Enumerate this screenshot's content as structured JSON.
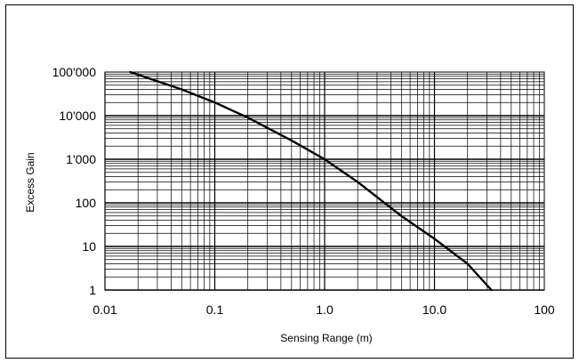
{
  "chart_data": {
    "type": "line",
    "title": "",
    "xlabel": "Sensing Range (m)",
    "ylabel": "Excess Gain",
    "x_scale": "log",
    "y_scale": "log",
    "xlim": [
      0.01,
      100
    ],
    "ylim": [
      1,
      100000
    ],
    "grid": true,
    "x_ticks": [
      {
        "value": 0.01,
        "label": "0.01"
      },
      {
        "value": 0.1,
        "label": "0.1"
      },
      {
        "value": 1,
        "label": "1.0"
      },
      {
        "value": 10,
        "label": "10.0"
      },
      {
        "value": 100,
        "label": "100"
      }
    ],
    "y_ticks": [
      {
        "value": 1,
        "label": "1"
      },
      {
        "value": 10,
        "label": "10"
      },
      {
        "value": 100,
        "label": "100"
      },
      {
        "value": 1000,
        "label": "1'000"
      },
      {
        "value": 10000,
        "label": "10'000"
      },
      {
        "value": 100000,
        "label": "100'000"
      }
    ],
    "series": [
      {
        "color": "#000000",
        "x": [
          0.017,
          0.05,
          0.1,
          0.2,
          0.5,
          1.0,
          2.0,
          5.0,
          10.0,
          20.0,
          33.0
        ],
        "y": [
          100000,
          40000,
          20000,
          9000,
          2700,
          1000,
          300,
          50,
          15,
          4,
          1
        ]
      }
    ]
  }
}
